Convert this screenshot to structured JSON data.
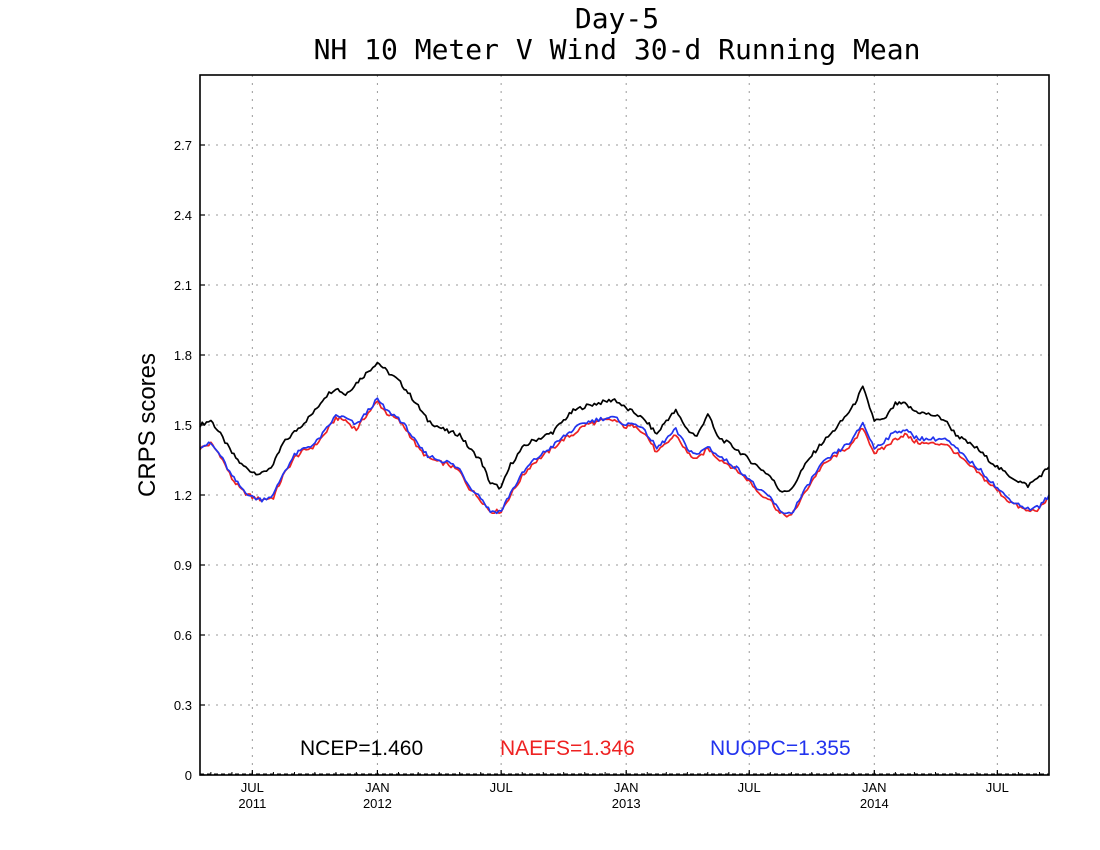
{
  "chart_data": {
    "type": "line",
    "title": "Day-5",
    "subtitle": "NH 10 Meter V Wind 30-d Running Mean",
    "ylabel": "CRPS scores",
    "xlabel": "",
    "ylim": [
      0,
      3.0
    ],
    "yticks": [
      0,
      0.3,
      0.6,
      0.9,
      1.2,
      1.5,
      1.8,
      2.1,
      2.4,
      2.7
    ],
    "ytick_labels": [
      "0",
      "0.3",
      "0.6",
      "0.9",
      "1.2",
      "1.5",
      "1.8",
      "2.1",
      "2.4",
      "2.7"
    ],
    "xlim": [
      "2011-04-15",
      "2014-09-15"
    ],
    "xticks": [
      {
        "date": "2011-07-01",
        "label": "JUL",
        "year": "2011"
      },
      {
        "date": "2012-01-01",
        "label": "JAN",
        "year": "2012"
      },
      {
        "date": "2012-07-01",
        "label": "JUL",
        "year": ""
      },
      {
        "date": "2013-01-01",
        "label": "JAN",
        "year": "2013"
      },
      {
        "date": "2013-07-01",
        "label": "JUL",
        "year": ""
      },
      {
        "date": "2014-01-01",
        "label": "JAN",
        "year": "2014"
      },
      {
        "date": "2014-07-01",
        "label": "JUL",
        "year": ""
      }
    ],
    "grid": true,
    "legend_position": "bottom",
    "x": [
      "2011-04-15",
      "2011-05-01",
      "2011-05-15",
      "2011-06-01",
      "2011-06-15",
      "2011-07-01",
      "2011-07-15",
      "2011-08-01",
      "2011-08-15",
      "2011-09-01",
      "2011-09-15",
      "2011-10-01",
      "2011-10-15",
      "2011-11-01",
      "2011-11-15",
      "2011-12-01",
      "2011-12-15",
      "2012-01-01",
      "2012-01-15",
      "2012-02-01",
      "2012-02-15",
      "2012-03-01",
      "2012-03-15",
      "2012-04-01",
      "2012-04-15",
      "2012-05-01",
      "2012-05-15",
      "2012-06-01",
      "2012-06-15",
      "2012-07-01",
      "2012-07-15",
      "2012-08-01",
      "2012-08-15",
      "2012-09-01",
      "2012-09-15",
      "2012-10-01",
      "2012-10-15",
      "2012-11-01",
      "2012-11-15",
      "2012-12-01",
      "2012-12-15",
      "2013-01-01",
      "2013-01-15",
      "2013-02-01",
      "2013-02-15",
      "2013-03-01",
      "2013-03-15",
      "2013-04-01",
      "2013-04-15",
      "2013-05-01",
      "2013-05-15",
      "2013-06-01",
      "2013-06-15",
      "2013-07-01",
      "2013-07-15",
      "2013-08-01",
      "2013-08-15",
      "2013-09-01",
      "2013-09-15",
      "2013-10-01",
      "2013-10-15",
      "2013-11-01",
      "2013-11-15",
      "2013-12-01",
      "2013-12-15",
      "2014-01-01",
      "2014-01-15",
      "2014-02-01",
      "2014-02-15",
      "2014-03-01",
      "2014-03-15",
      "2014-04-01",
      "2014-04-15",
      "2014-05-01",
      "2014-05-15",
      "2014-06-01",
      "2014-06-15",
      "2014-07-01",
      "2014-07-15",
      "2014-08-01",
      "2014-08-15",
      "2014-09-01",
      "2014-09-15"
    ],
    "series": [
      {
        "name": "NCEP",
        "color": "#000000",
        "values": [
          1.5,
          1.52,
          1.46,
          1.38,
          1.33,
          1.3,
          1.29,
          1.33,
          1.42,
          1.47,
          1.51,
          1.56,
          1.62,
          1.66,
          1.63,
          1.68,
          1.72,
          1.77,
          1.73,
          1.69,
          1.64,
          1.58,
          1.52,
          1.49,
          1.47,
          1.46,
          1.4,
          1.35,
          1.25,
          1.23,
          1.33,
          1.4,
          1.43,
          1.45,
          1.47,
          1.52,
          1.56,
          1.58,
          1.59,
          1.6,
          1.61,
          1.57,
          1.55,
          1.51,
          1.46,
          1.52,
          1.56,
          1.48,
          1.45,
          1.55,
          1.45,
          1.42,
          1.39,
          1.35,
          1.32,
          1.28,
          1.22,
          1.22,
          1.3,
          1.37,
          1.42,
          1.47,
          1.52,
          1.58,
          1.66,
          1.52,
          1.52,
          1.59,
          1.59,
          1.56,
          1.55,
          1.54,
          1.52,
          1.46,
          1.43,
          1.4,
          1.36,
          1.32,
          1.29,
          1.26,
          1.24,
          1.28,
          1.32
        ]
      },
      {
        "name": "NAEFS",
        "color": "#ee2222",
        "values": [
          1.4,
          1.42,
          1.37,
          1.27,
          1.22,
          1.19,
          1.18,
          1.19,
          1.28,
          1.36,
          1.39,
          1.41,
          1.46,
          1.53,
          1.52,
          1.48,
          1.54,
          1.6,
          1.55,
          1.52,
          1.47,
          1.4,
          1.36,
          1.34,
          1.33,
          1.3,
          1.23,
          1.18,
          1.13,
          1.13,
          1.2,
          1.28,
          1.33,
          1.37,
          1.4,
          1.44,
          1.46,
          1.5,
          1.51,
          1.52,
          1.52,
          1.49,
          1.5,
          1.45,
          1.38,
          1.42,
          1.46,
          1.38,
          1.35,
          1.4,
          1.36,
          1.33,
          1.3,
          1.26,
          1.21,
          1.18,
          1.12,
          1.11,
          1.18,
          1.26,
          1.32,
          1.36,
          1.39,
          1.42,
          1.49,
          1.38,
          1.4,
          1.44,
          1.46,
          1.43,
          1.42,
          1.42,
          1.42,
          1.38,
          1.34,
          1.3,
          1.26,
          1.22,
          1.18,
          1.15,
          1.13,
          1.14,
          1.19
        ]
      },
      {
        "name": "NUOPC",
        "color": "#2233ee",
        "values": [
          1.41,
          1.42,
          1.37,
          1.28,
          1.23,
          1.19,
          1.18,
          1.2,
          1.29,
          1.37,
          1.4,
          1.42,
          1.47,
          1.54,
          1.53,
          1.5,
          1.55,
          1.61,
          1.56,
          1.53,
          1.48,
          1.41,
          1.37,
          1.35,
          1.34,
          1.31,
          1.24,
          1.19,
          1.13,
          1.13,
          1.21,
          1.29,
          1.34,
          1.38,
          1.41,
          1.45,
          1.48,
          1.51,
          1.52,
          1.53,
          1.53,
          1.5,
          1.51,
          1.46,
          1.4,
          1.44,
          1.48,
          1.4,
          1.37,
          1.41,
          1.37,
          1.34,
          1.31,
          1.27,
          1.22,
          1.19,
          1.13,
          1.12,
          1.19,
          1.27,
          1.33,
          1.37,
          1.4,
          1.44,
          1.51,
          1.4,
          1.43,
          1.47,
          1.48,
          1.45,
          1.44,
          1.44,
          1.44,
          1.4,
          1.36,
          1.32,
          1.28,
          1.23,
          1.19,
          1.16,
          1.14,
          1.15,
          1.2
        ]
      }
    ],
    "legend_entries": [
      "NCEP=1.460",
      "NAEFS=1.346",
      "NUOPC=1.355"
    ]
  }
}
